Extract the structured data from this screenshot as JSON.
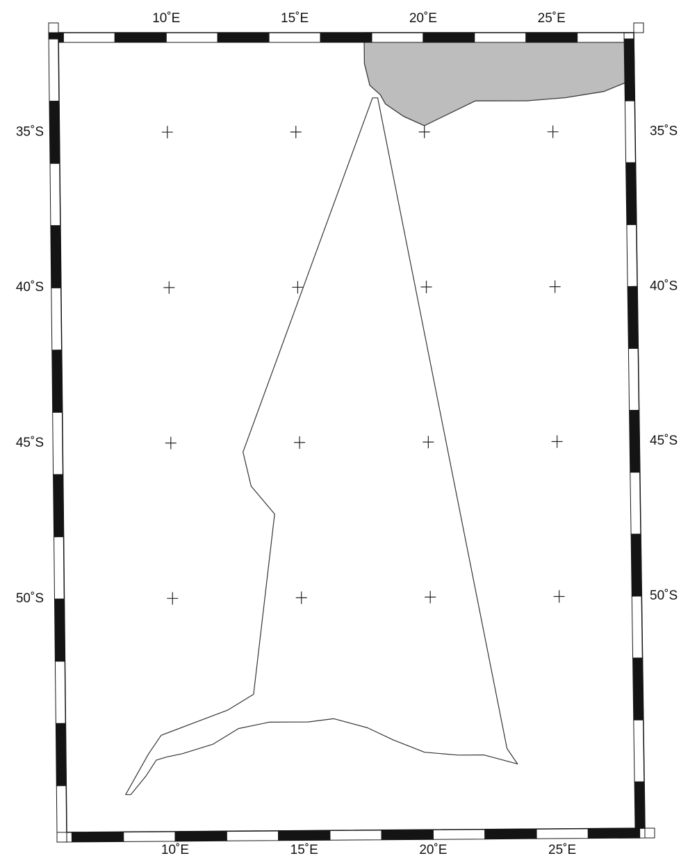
{
  "map": {
    "projection_note": "",
    "lon_range": [
      5.8,
      28.2
    ],
    "lat_range": [
      -57.5,
      -31.8
    ],
    "colors": {
      "frame_dark": "#141414",
      "frame_light": "#ffffff",
      "land": "#bdbdbd",
      "track": "#333333",
      "grid_cross": "#222222",
      "text": "#111111"
    },
    "top_lon_labels": [
      {
        "lon": 10,
        "text": "10˚E"
      },
      {
        "lon": 15,
        "text": "15˚E"
      },
      {
        "lon": 20,
        "text": "20˚E"
      },
      {
        "lon": 25,
        "text": "25˚E"
      }
    ],
    "bottom_lon_labels": [
      {
        "lon": 10,
        "text": "10˚E"
      },
      {
        "lon": 15,
        "text": "15˚E"
      },
      {
        "lon": 20,
        "text": "20˚E"
      },
      {
        "lon": 25,
        "text": "25˚E"
      }
    ],
    "left_lat_labels": [
      {
        "lat": -35,
        "text": "35˚S"
      },
      {
        "lat": -40,
        "text": "40˚S"
      },
      {
        "lat": -45,
        "text": "45˚S"
      },
      {
        "lat": -50,
        "text": "50˚S"
      }
    ],
    "right_lat_labels": [
      {
        "lat": -35,
        "text": "35˚S"
      },
      {
        "lat": -40,
        "text": "40˚S"
      },
      {
        "lat": -45,
        "text": "45˚S"
      },
      {
        "lat": -50,
        "text": "50˚S"
      }
    ],
    "grid_crosses": {
      "lons": [
        10,
        15,
        20,
        25
      ],
      "lats": [
        -35,
        -40,
        -45,
        -50
      ]
    },
    "land_polygon_lonlat": [
      [
        17.7,
        -31.8
      ],
      [
        28.2,
        -31.8
      ],
      [
        28.2,
        -33.3
      ],
      [
        27.0,
        -33.7
      ],
      [
        25.5,
        -33.9
      ],
      [
        24.0,
        -34.0
      ],
      [
        22.0,
        -34.0
      ],
      [
        20.0,
        -34.8
      ],
      [
        19.2,
        -34.5
      ],
      [
        18.5,
        -34.1
      ],
      [
        18.3,
        -33.8
      ],
      [
        17.9,
        -33.5
      ],
      [
        17.7,
        -32.8
      ]
    ],
    "track_lonlat": [
      [
        18.0,
        -33.9
      ],
      [
        12.8,
        -45.3
      ],
      [
        13.1,
        -46.4
      ],
      [
        14.0,
        -47.3
      ],
      [
        13.1,
        -53.1
      ],
      [
        12.1,
        -53.6
      ],
      [
        10.8,
        -54.0
      ],
      [
        9.5,
        -54.4
      ],
      [
        9.0,
        -55.0
      ],
      [
        8.1,
        -56.3
      ],
      [
        8.3,
        -56.3
      ],
      [
        8.9,
        -55.7
      ],
      [
        9.3,
        -55.2
      ],
      [
        9.7,
        -55.1
      ],
      [
        10.3,
        -55.0
      ],
      [
        11.5,
        -54.7
      ],
      [
        12.5,
        -54.2
      ],
      [
        13.7,
        -54.0
      ],
      [
        14.8,
        -54.0
      ],
      [
        15.2,
        -54.0
      ],
      [
        16.2,
        -53.9
      ],
      [
        17.5,
        -54.2
      ],
      [
        18.5,
        -54.6
      ],
      [
        19.7,
        -55.0
      ],
      [
        21.0,
        -55.1
      ],
      [
        22.0,
        -55.1
      ],
      [
        23.3,
        -55.4
      ],
      [
        22.9,
        -54.9
      ],
      [
        18.2,
        -33.9
      ],
      [
        18.0,
        -33.9
      ]
    ]
  }
}
